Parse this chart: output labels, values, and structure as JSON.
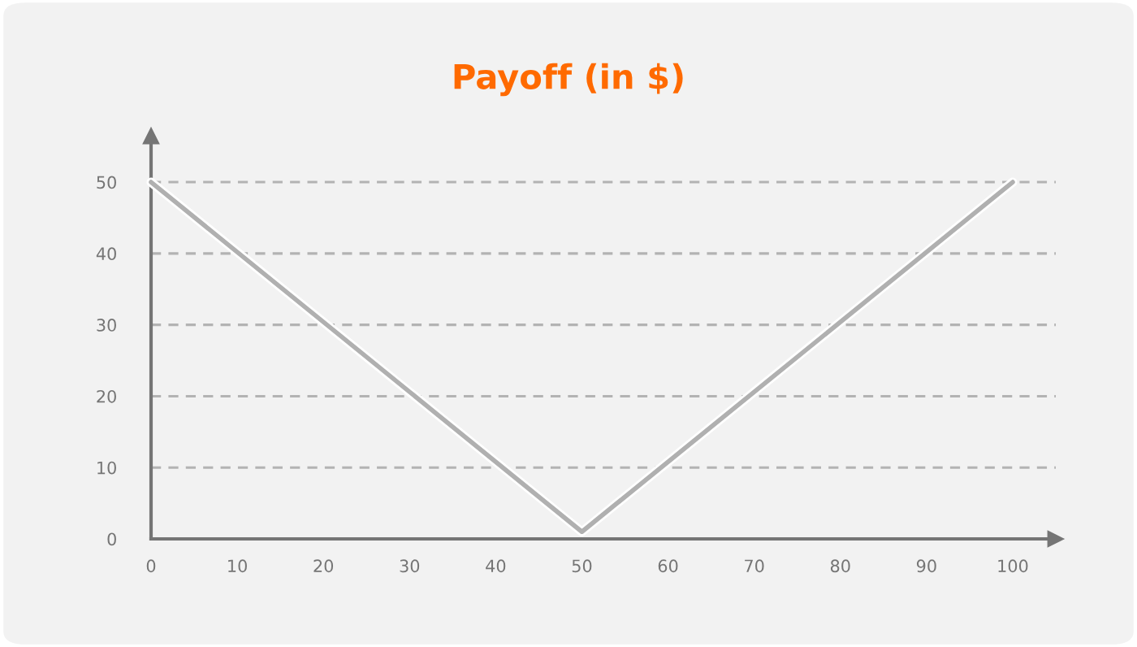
{
  "chart_data": {
    "type": "line",
    "title": "Payoff (in $)",
    "x": [
      0,
      50,
      100
    ],
    "series": [
      {
        "color": "#b0b0b0",
        "values": [
          50,
          1,
          50
        ]
      }
    ],
    "xlim": [
      0,
      105
    ],
    "ylim": [
      0,
      56.5
    ],
    "xticks": [
      0,
      10,
      20,
      30,
      40,
      50,
      60,
      70,
      80,
      90,
      100
    ],
    "yticks": [
      0,
      10,
      20,
      30,
      40,
      50
    ],
    "grid": "y",
    "marker": "none",
    "line_style": "solid",
    "legend": false
  }
}
